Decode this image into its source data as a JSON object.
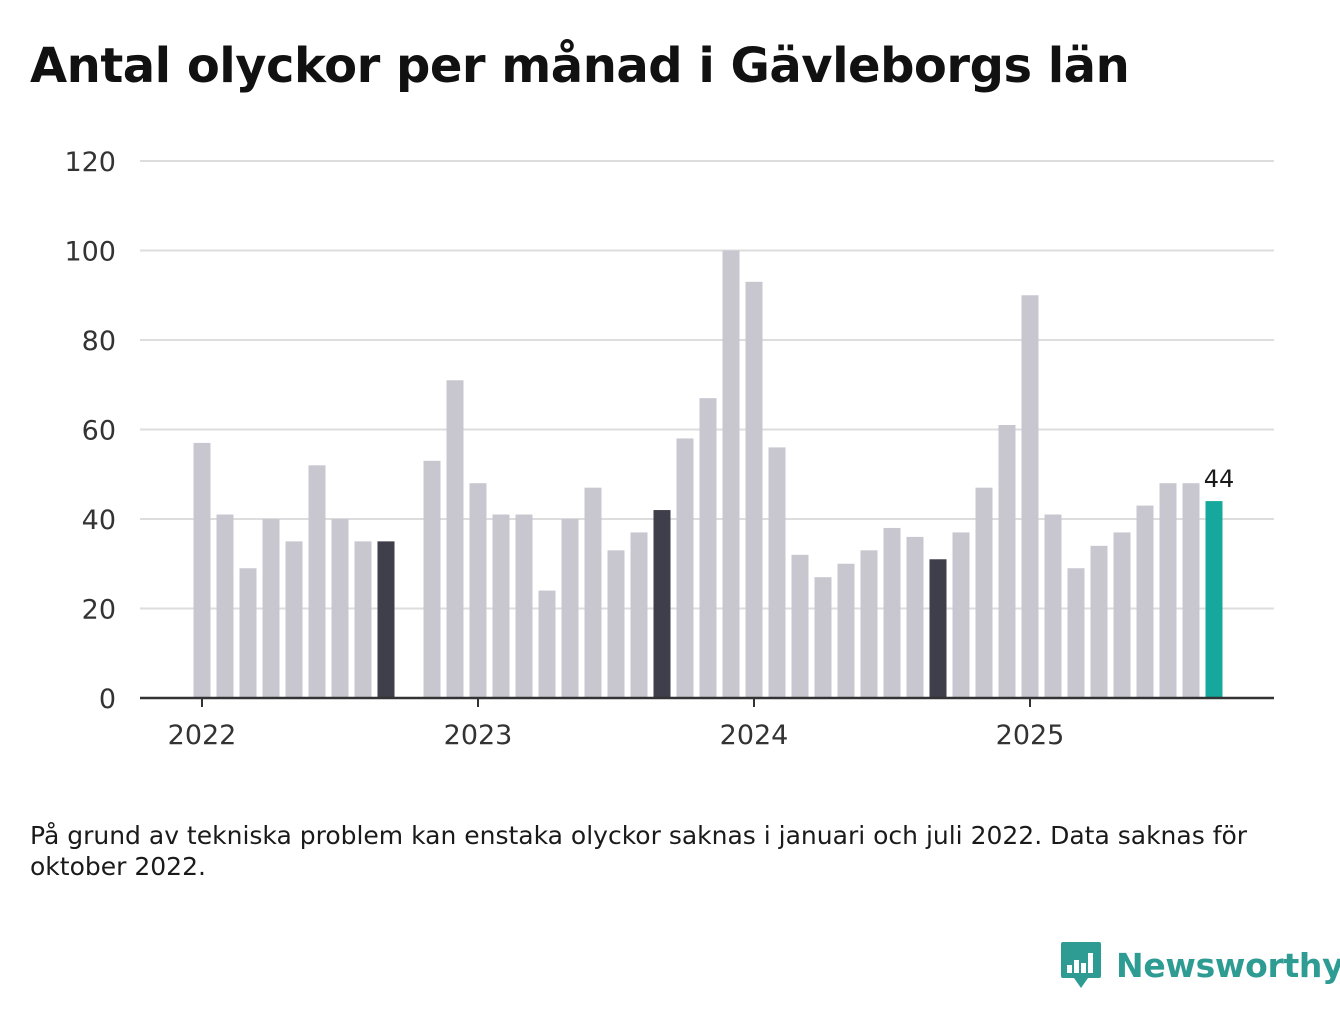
{
  "title": "Antal olyckor per månad i Gävleborgs län",
  "footnote": "På grund av tekniska problem kan enstaka olyckor saknas i januari och juli 2022. Data saknas för oktober 2022.",
  "brand": {
    "name": "Newsworthy",
    "icon": "newsworthy-logo-icon"
  },
  "colors": {
    "bar": "#c8c7cf",
    "highlight": "#3f3e4b",
    "latest": "#16a89c",
    "grid": "#dddddd",
    "axis": "#333333",
    "brand": "#2f9c94"
  },
  "chart_data": {
    "type": "bar",
    "title": "Antal olyckor per månad i Gävleborgs län",
    "xlabel": "",
    "ylabel": "",
    "ylim": [
      0,
      120
    ],
    "yticks": [
      0,
      20,
      40,
      60,
      80,
      100,
      120
    ],
    "x_tick_labels": [
      {
        "label": "2022",
        "month_index": 0
      },
      {
        "label": "2023",
        "month_index": 12
      },
      {
        "label": "2024",
        "month_index": 24
      },
      {
        "label": "2025",
        "month_index": 36
      }
    ],
    "start": "2022-01",
    "values": [
      57,
      41,
      29,
      40,
      35,
      52,
      40,
      35,
      35,
      null,
      53,
      71,
      48,
      41,
      41,
      24,
      40,
      47,
      33,
      37,
      42,
      58,
      67,
      100,
      93,
      56,
      32,
      27,
      30,
      33,
      38,
      36,
      31,
      37,
      47,
      61,
      90,
      41,
      29,
      34,
      37,
      43,
      48,
      48,
      44
    ],
    "highlight_indices": [
      8,
      20,
      32
    ],
    "latest_label": "44"
  }
}
